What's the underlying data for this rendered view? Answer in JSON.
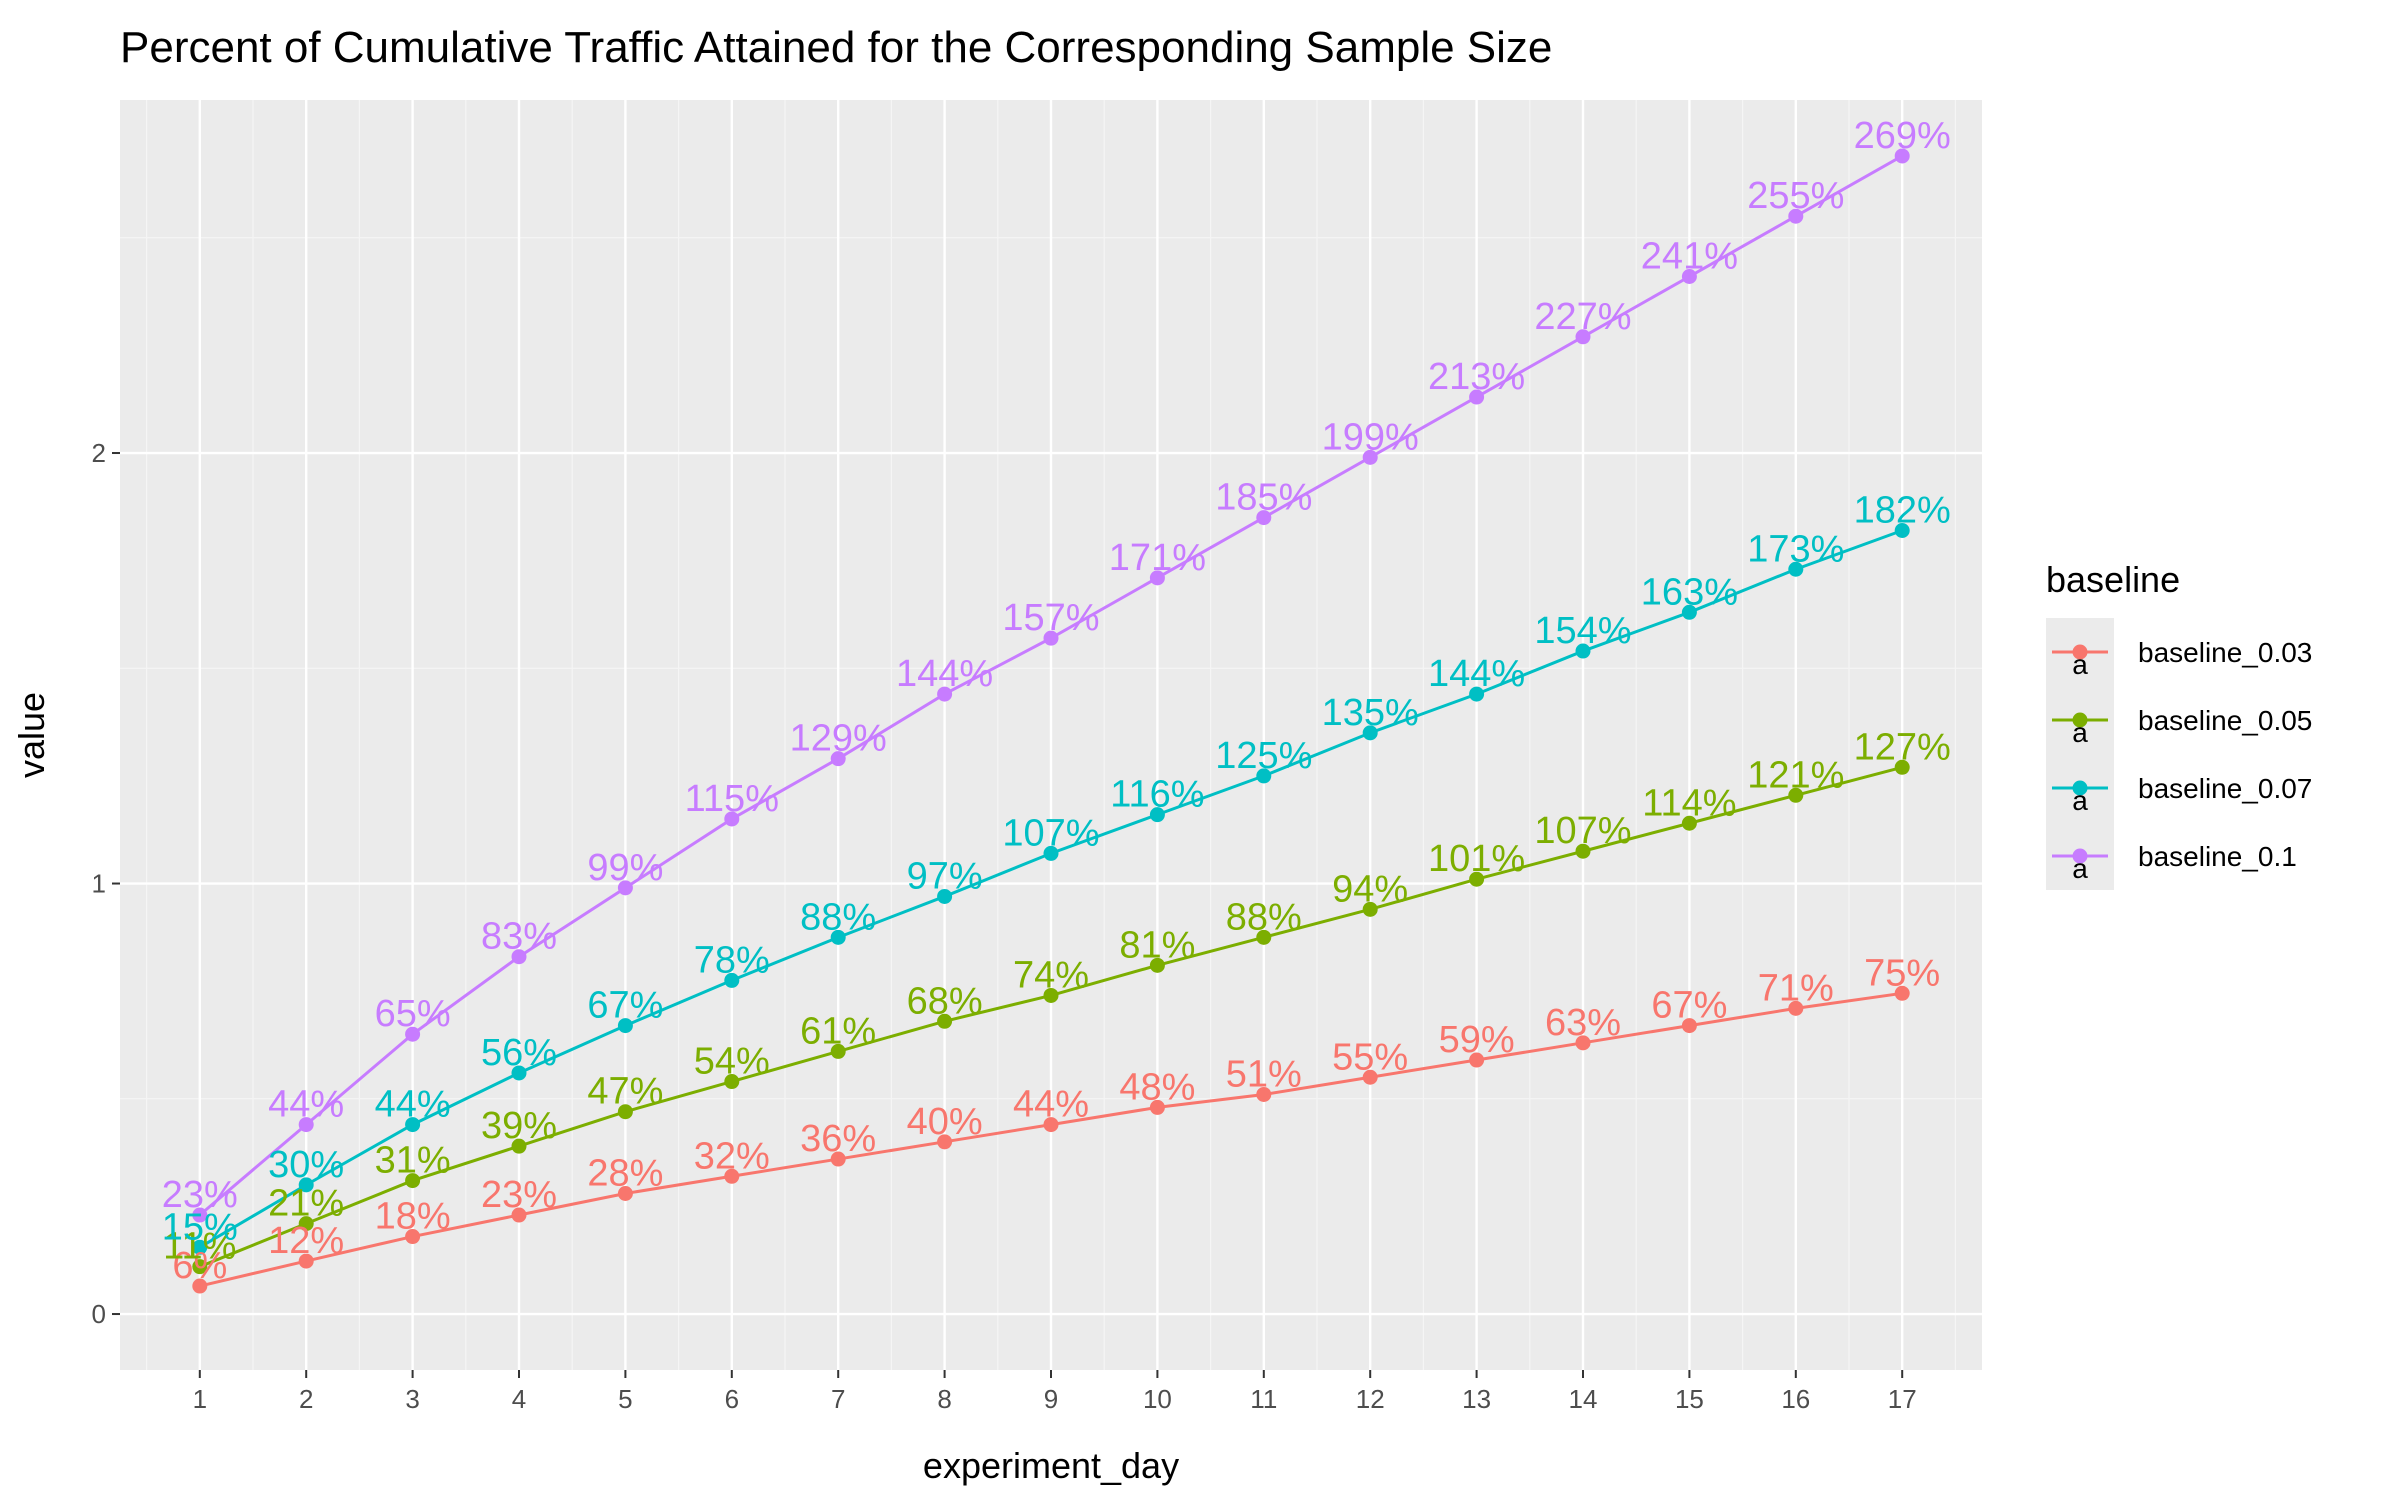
{
  "chart_data": {
    "type": "line",
    "title": "Percent of Cumulative Traffic Attained for the Corresponding Sample Size",
    "xlabel": "experiment_day",
    "ylabel": "value",
    "x": [
      1,
      2,
      3,
      4,
      5,
      6,
      7,
      8,
      9,
      10,
      11,
      12,
      13,
      14,
      15,
      16,
      17
    ],
    "x_tick_labels": [
      "1",
      "2",
      "3",
      "4",
      "5",
      "6",
      "7",
      "8",
      "9",
      "10",
      "11",
      "12",
      "13",
      "14",
      "15",
      "16",
      "17"
    ],
    "xlim": [
      0.25,
      17.75
    ],
    "y_ticks": [
      0,
      1,
      2
    ],
    "y_tick_labels": [
      "0",
      "1",
      "2"
    ],
    "ylim": [
      -0.13,
      2.82
    ],
    "grid": true,
    "legend": {
      "title": "baseline",
      "position": "right",
      "key_glyph": "a"
    },
    "series": [
      {
        "name": "baseline_0.03",
        "color": "#F8766D",
        "values": [
          0.065,
          0.123,
          0.18,
          0.23,
          0.28,
          0.32,
          0.36,
          0.4,
          0.44,
          0.48,
          0.51,
          0.55,
          0.59,
          0.63,
          0.67,
          0.71,
          0.745
        ],
        "labels": [
          "6%",
          "12%",
          "18%",
          "23%",
          "28%",
          "32%",
          "36%",
          "40%",
          "44%",
          "48%",
          "51%",
          "55%",
          "59%",
          "63%",
          "67%",
          "71%",
          "75%"
        ]
      },
      {
        "name": "baseline_0.05",
        "color": "#7CAE00",
        "values": [
          0.11,
          0.21,
          0.31,
          0.39,
          0.47,
          0.54,
          0.61,
          0.68,
          0.74,
          0.81,
          0.875,
          0.94,
          1.01,
          1.075,
          1.14,
          1.205,
          1.27
        ],
        "labels": [
          "11%",
          "21%",
          "31%",
          "39%",
          "47%",
          "54%",
          "61%",
          "68%",
          "74%",
          "81%",
          "88%",
          "94%",
          "101%",
          "107%",
          "114%",
          "121%",
          "127%"
        ]
      },
      {
        "name": "baseline_0.07",
        "color": "#00BFC4",
        "values": [
          0.155,
          0.3,
          0.44,
          0.56,
          0.67,
          0.775,
          0.875,
          0.97,
          1.07,
          1.16,
          1.25,
          1.35,
          1.44,
          1.54,
          1.63,
          1.73,
          1.82
        ],
        "labels": [
          "15%",
          "30%",
          "44%",
          "56%",
          "67%",
          "78%",
          "88%",
          "97%",
          "107%",
          "116%",
          "125%",
          "135%",
          "144%",
          "154%",
          "163%",
          "173%",
          "182%"
        ]
      },
      {
        "name": "baseline_0.1",
        "color": "#C77CFF",
        "values": [
          0.23,
          0.44,
          0.65,
          0.83,
          0.99,
          1.15,
          1.29,
          1.44,
          1.57,
          1.71,
          1.85,
          1.99,
          2.13,
          2.27,
          2.41,
          2.55,
          2.69
        ],
        "labels": [
          "23%",
          "44%",
          "65%",
          "83%",
          "99%",
          "115%",
          "129%",
          "144%",
          "157%",
          "171%",
          "185%",
          "199%",
          "213%",
          "227%",
          "241%",
          "255%",
          "269%"
        ]
      }
    ],
    "colors": {
      "panel_background": "#EBEBEB",
      "grid_major": "#FFFFFF",
      "grid_minor": "#F5F5F5",
      "tick_text": "#4D4D4D"
    }
  }
}
